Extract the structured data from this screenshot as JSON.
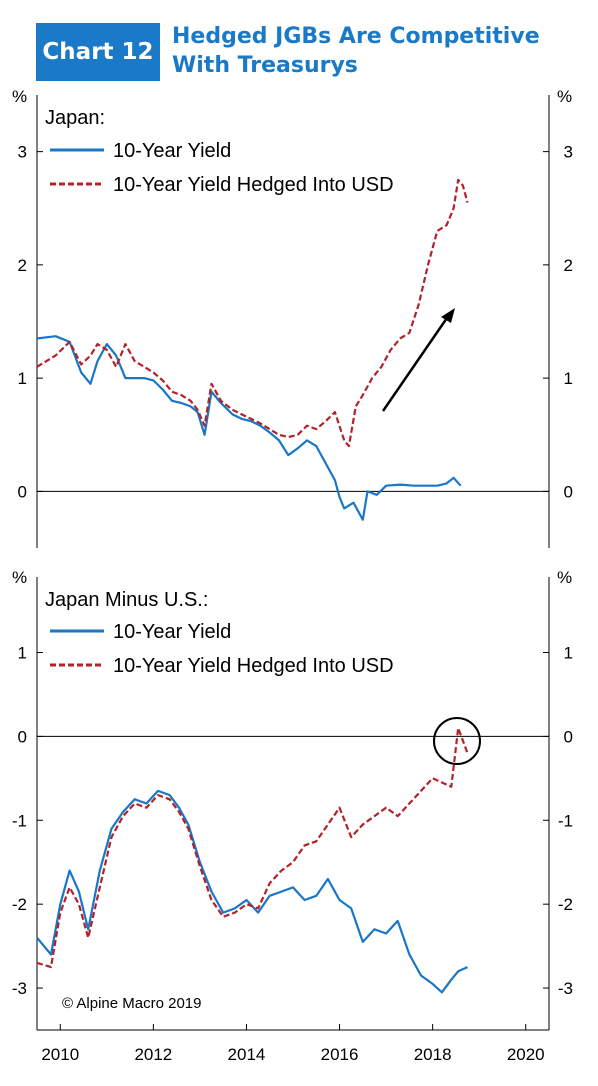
{
  "header": {
    "badge": "Chart 12",
    "title_line1": "Hedged JGBs Are Competitive",
    "title_line2": "With Treasurys"
  },
  "colors": {
    "blue": "#1a76c6",
    "red": "#b2222a",
    "badge": "#1a7ac8"
  },
  "unit_label": "%",
  "credit": "© Alpine Macro 2019",
  "x_axis": {
    "range": [
      2009.5,
      2020.5
    ],
    "ticks": [
      2010,
      2012,
      2014,
      2016,
      2018,
      2020
    ],
    "tick_labels": [
      "2010",
      "2012",
      "2014",
      "2016",
      "2018",
      "2020"
    ]
  },
  "chart_data": [
    {
      "type": "line",
      "panel_title": "Japan:",
      "ylim": [
        -0.5,
        3.5
      ],
      "yticks": [
        0,
        1,
        2,
        3
      ],
      "ytick_labels": [
        "0",
        "1",
        "2",
        "3"
      ],
      "zero_line": true,
      "annotation": "upward arrow",
      "series": [
        {
          "name": "10-Year Yield",
          "style": "solid",
          "color": "blue",
          "x": [
            2009.5,
            2009.9,
            2010.2,
            2010.45,
            2010.65,
            2010.8,
            2011.0,
            2011.2,
            2011.4,
            2011.6,
            2011.8,
            2012.0,
            2012.2,
            2012.4,
            2012.6,
            2012.8,
            2012.95,
            2013.1,
            2013.25,
            2013.45,
            2013.7,
            2013.9,
            2014.1,
            2014.3,
            2014.5,
            2014.7,
            2014.9,
            2015.1,
            2015.3,
            2015.5,
            2015.7,
            2015.9,
            2016.0,
            2016.1,
            2016.3,
            2016.5,
            2016.6,
            2016.8,
            2017.0,
            2017.3,
            2017.6,
            2017.9,
            2018.1,
            2018.3,
            2018.45,
            2018.6
          ],
          "y": [
            1.35,
            1.37,
            1.32,
            1.05,
            0.95,
            1.15,
            1.3,
            1.2,
            1.0,
            1.0,
            1.0,
            0.98,
            0.9,
            0.8,
            0.78,
            0.75,
            0.7,
            0.5,
            0.88,
            0.78,
            0.68,
            0.64,
            0.62,
            0.58,
            0.52,
            0.45,
            0.32,
            0.38,
            0.45,
            0.4,
            0.25,
            0.1,
            -0.05,
            -0.15,
            -0.1,
            -0.25,
            0.0,
            -0.03,
            0.05,
            0.06,
            0.05,
            0.05,
            0.05,
            0.07,
            0.12,
            0.05
          ]
        },
        {
          "name": "10-Year Yield Hedged Into USD",
          "style": "dashed",
          "color": "red",
          "x": [
            2009.5,
            2009.9,
            2010.2,
            2010.45,
            2010.65,
            2010.8,
            2011.0,
            2011.2,
            2011.4,
            2011.6,
            2011.8,
            2012.0,
            2012.2,
            2012.4,
            2012.6,
            2012.8,
            2012.95,
            2013.1,
            2013.25,
            2013.45,
            2013.7,
            2013.9,
            2014.1,
            2014.3,
            2014.5,
            2014.7,
            2014.9,
            2015.1,
            2015.3,
            2015.5,
            2015.7,
            2015.9,
            2016.1,
            2016.2,
            2016.35,
            2016.5,
            2016.7,
            2016.9,
            2017.1,
            2017.3,
            2017.5,
            2017.7,
            2017.9,
            2018.1,
            2018.3,
            2018.45,
            2018.55,
            2018.65,
            2018.75
          ],
          "y": [
            1.1,
            1.2,
            1.32,
            1.12,
            1.2,
            1.3,
            1.25,
            1.1,
            1.3,
            1.15,
            1.1,
            1.05,
            0.98,
            0.88,
            0.85,
            0.8,
            0.72,
            0.58,
            0.95,
            0.8,
            0.72,
            0.68,
            0.64,
            0.6,
            0.55,
            0.5,
            0.48,
            0.5,
            0.58,
            0.55,
            0.62,
            0.7,
            0.45,
            0.4,
            0.75,
            0.85,
            1.0,
            1.1,
            1.25,
            1.35,
            1.4,
            1.65,
            2.0,
            2.3,
            2.35,
            2.5,
            2.75,
            2.7,
            2.55
          ]
        }
      ]
    },
    {
      "type": "line",
      "panel_title": "Japan Minus U.S.:",
      "ylim": [
        -3.5,
        1.9
      ],
      "yticks": [
        1,
        0,
        -1,
        -2,
        -3
      ],
      "ytick_labels": [
        "1",
        "0",
        "-1",
        "-2",
        "-3"
      ],
      "zero_line": true,
      "annotation": "circle around latest hedged value",
      "series": [
        {
          "name": "10-Year Yield",
          "style": "solid",
          "color": "blue",
          "x": [
            2009.5,
            2009.8,
            2010.0,
            2010.2,
            2010.4,
            2010.6,
            2010.85,
            2011.1,
            2011.35,
            2011.6,
            2011.85,
            2012.1,
            2012.35,
            2012.55,
            2012.75,
            2013.0,
            2013.25,
            2013.5,
            2013.75,
            2014.0,
            2014.25,
            2014.5,
            2014.75,
            2015.0,
            2015.25,
            2015.5,
            2015.75,
            2016.0,
            2016.25,
            2016.5,
            2016.75,
            2017.0,
            2017.25,
            2017.5,
            2017.75,
            2018.0,
            2018.2,
            2018.4,
            2018.55,
            2018.75
          ],
          "y": [
            -2.4,
            -2.6,
            -2.0,
            -1.6,
            -1.85,
            -2.3,
            -1.6,
            -1.1,
            -0.9,
            -0.75,
            -0.8,
            -0.65,
            -0.7,
            -0.85,
            -1.05,
            -1.5,
            -1.85,
            -2.1,
            -2.05,
            -1.95,
            -2.1,
            -1.9,
            -1.85,
            -1.8,
            -1.95,
            -1.9,
            -1.7,
            -1.95,
            -2.05,
            -2.45,
            -2.3,
            -2.35,
            -2.2,
            -2.6,
            -2.85,
            -2.95,
            -3.05,
            -2.9,
            -2.8,
            -2.75
          ]
        },
        {
          "name": "10-Year Yield Hedged Into USD",
          "style": "dashed",
          "color": "red",
          "x": [
            2009.5,
            2009.8,
            2010.0,
            2010.2,
            2010.4,
            2010.6,
            2010.85,
            2011.1,
            2011.35,
            2011.6,
            2011.85,
            2012.1,
            2012.35,
            2012.55,
            2012.75,
            2013.0,
            2013.25,
            2013.5,
            2013.75,
            2014.0,
            2014.25,
            2014.5,
            2014.75,
            2015.0,
            2015.25,
            2015.5,
            2015.75,
            2016.0,
            2016.25,
            2016.5,
            2016.75,
            2017.0,
            2017.25,
            2017.5,
            2017.75,
            2018.0,
            2018.2,
            2018.4,
            2018.55,
            2018.75
          ],
          "y": [
            -2.7,
            -2.75,
            -2.1,
            -1.8,
            -2.0,
            -2.4,
            -1.8,
            -1.2,
            -0.95,
            -0.8,
            -0.85,
            -0.7,
            -0.75,
            -0.9,
            -1.1,
            -1.55,
            -1.95,
            -2.15,
            -2.1,
            -2.0,
            -2.05,
            -1.75,
            -1.6,
            -1.5,
            -1.3,
            -1.25,
            -1.05,
            -0.85,
            -1.2,
            -1.05,
            -0.95,
            -0.85,
            -0.95,
            -0.8,
            -0.65,
            -0.5,
            -0.55,
            -0.6,
            0.1,
            -0.2
          ]
        }
      ]
    }
  ]
}
